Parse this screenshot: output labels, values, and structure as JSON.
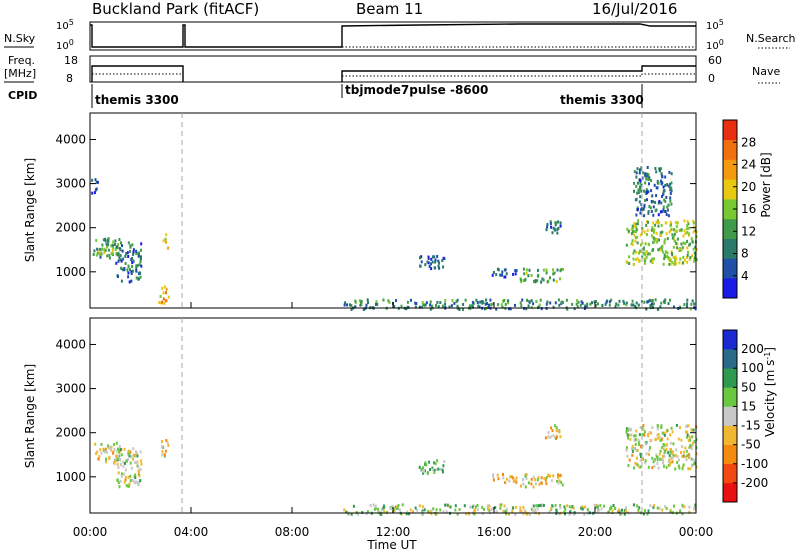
{
  "header": {
    "station": "Buckland Park (fitACF)",
    "beam": "Beam 11",
    "date": "16/Jul/2016"
  },
  "left_labels": {
    "nsky": "N.Sky",
    "freq": "Freq.",
    "freq_unit": "[MHz]",
    "cpid": "CPID"
  },
  "right_labels": {
    "nsearch": "N.Search",
    "nave": "Nave"
  },
  "nsky_ticks": {
    "top": "10^5",
    "bottom": "10^0"
  },
  "freq_ticks": {
    "top": "18",
    "bottom": "8"
  },
  "nave_ticks": {
    "top": "60",
    "bottom": "0"
  },
  "cpid_labels": [
    {
      "label": "themis 3300",
      "start": 0.0,
      "end": 3.6
    },
    {
      "label": "tbjmode7pulse -8600",
      "start": 9.9,
      "end": 22.0
    },
    {
      "label": "themis 3300",
      "start": 22.0,
      "end": 24.0
    }
  ],
  "chart_data": [
    {
      "type": "heatmap",
      "title": "",
      "xlabel": "Time UT",
      "ylabel": "Slant Range [km]",
      "colorbar_label": "Power [dB]",
      "x_ticks": [
        "00:00",
        "04:00",
        "08:00",
        "12:00",
        "16:00",
        "20:00",
        "00:00"
      ],
      "xlim": [
        0,
        24
      ],
      "y_ticks": [
        1000,
        2000,
        3000,
        4000
      ],
      "ylim": [
        180,
        4600
      ],
      "colorbar_ticks": [
        "4",
        "8",
        "12",
        "16",
        "20",
        "24",
        "28"
      ],
      "colorbar_range": [
        0,
        32
      ],
      "data_gap_hours": [
        3.6,
        9.9
      ],
      "regions": [
        {
          "t": [
            0.1,
            1.2
          ],
          "r": [
            1300,
            1800
          ],
          "v": 12
        },
        {
          "t": [
            0.3,
            1.0
          ],
          "r": [
            1450,
            1600
          ],
          "v": 18
        },
        {
          "t": [
            1.0,
            2.0
          ],
          "r": [
            800,
            1700
          ],
          "v": 8
        },
        {
          "t": [
            2.8,
            3.1
          ],
          "r": [
            1500,
            1900
          ],
          "v": 20
        },
        {
          "t": [
            2.7,
            3.1
          ],
          "r": [
            300,
            700
          ],
          "v": 22
        },
        {
          "t": [
            0.0,
            0.3
          ],
          "r": [
            2800,
            3200
          ],
          "v": 6
        },
        {
          "t": [
            13.0,
            14.0
          ],
          "r": [
            1100,
            1400
          ],
          "v": 6
        },
        {
          "t": [
            15.8,
            16.9
          ],
          "r": [
            900,
            1100
          ],
          "v": 6
        },
        {
          "t": [
            17.0,
            18.7
          ],
          "r": [
            800,
            1100
          ],
          "v": 13
        },
        {
          "t": [
            18.0,
            18.6
          ],
          "r": [
            1900,
            2200
          ],
          "v": 8
        },
        {
          "t": [
            21.2,
            24.0
          ],
          "r": [
            1200,
            2200
          ],
          "v": 16
        },
        {
          "t": [
            21.5,
            23.0
          ],
          "r": [
            2300,
            3400
          ],
          "v": 8
        },
        {
          "t": [
            10.0,
            24.0
          ],
          "r": [
            180,
            400
          ],
          "v": 10
        }
      ]
    },
    {
      "type": "heatmap",
      "title": "",
      "xlabel": "Time UT",
      "ylabel": "Slant Range [km]",
      "colorbar_label": "Velocity [m s^-1]",
      "x_ticks": [
        "00:00",
        "04:00",
        "08:00",
        "12:00",
        "16:00",
        "20:00",
        "00:00"
      ],
      "xlim": [
        0,
        24
      ],
      "y_ticks": [
        1000,
        2000,
        3000,
        4000
      ],
      "ylim": [
        180,
        4600
      ],
      "colorbar_ticks": [
        "-200",
        "-100",
        "-50",
        "-15",
        "15",
        "50",
        "100",
        "200"
      ],
      "data_gap_hours": [
        3.6,
        9.9
      ],
      "regions": [
        {
          "t": [
            0.1,
            1.2
          ],
          "r": [
            1300,
            1800
          ],
          "v": 0
        },
        {
          "t": [
            1.0,
            2.0
          ],
          "r": [
            800,
            1700
          ],
          "v": 0
        },
        {
          "t": [
            2.8,
            3.1
          ],
          "r": [
            1500,
            1900
          ],
          "v": -30
        },
        {
          "t": [
            13.0,
            14.0
          ],
          "r": [
            1100,
            1400
          ],
          "v": 40
        },
        {
          "t": [
            15.8,
            16.9
          ],
          "r": [
            900,
            1100
          ],
          "v": -40
        },
        {
          "t": [
            17.0,
            18.7
          ],
          "r": [
            800,
            1100
          ],
          "v": -30
        },
        {
          "t": [
            18.0,
            18.6
          ],
          "r": [
            1900,
            2200
          ],
          "v": -30
        },
        {
          "t": [
            21.2,
            24.0
          ],
          "r": [
            1200,
            2200
          ],
          "v": 0
        },
        {
          "t": [
            10.0,
            24.0
          ],
          "r": [
            180,
            400
          ],
          "v": 20
        }
      ]
    }
  ],
  "colors": {
    "power_scale": [
      "#1a1ae6",
      "#1f4fa8",
      "#2a7a6a",
      "#3f9a4a",
      "#78c832",
      "#e8c810",
      "#f59a10",
      "#f07010",
      "#e83010"
    ],
    "velocity_scale": [
      "#e81010",
      "#f04a10",
      "#f58a10",
      "#f0b830",
      "#c8c8c8",
      "#6ac840",
      "#2e9a50",
      "#2a6a8a",
      "#1a2ad0"
    ]
  }
}
